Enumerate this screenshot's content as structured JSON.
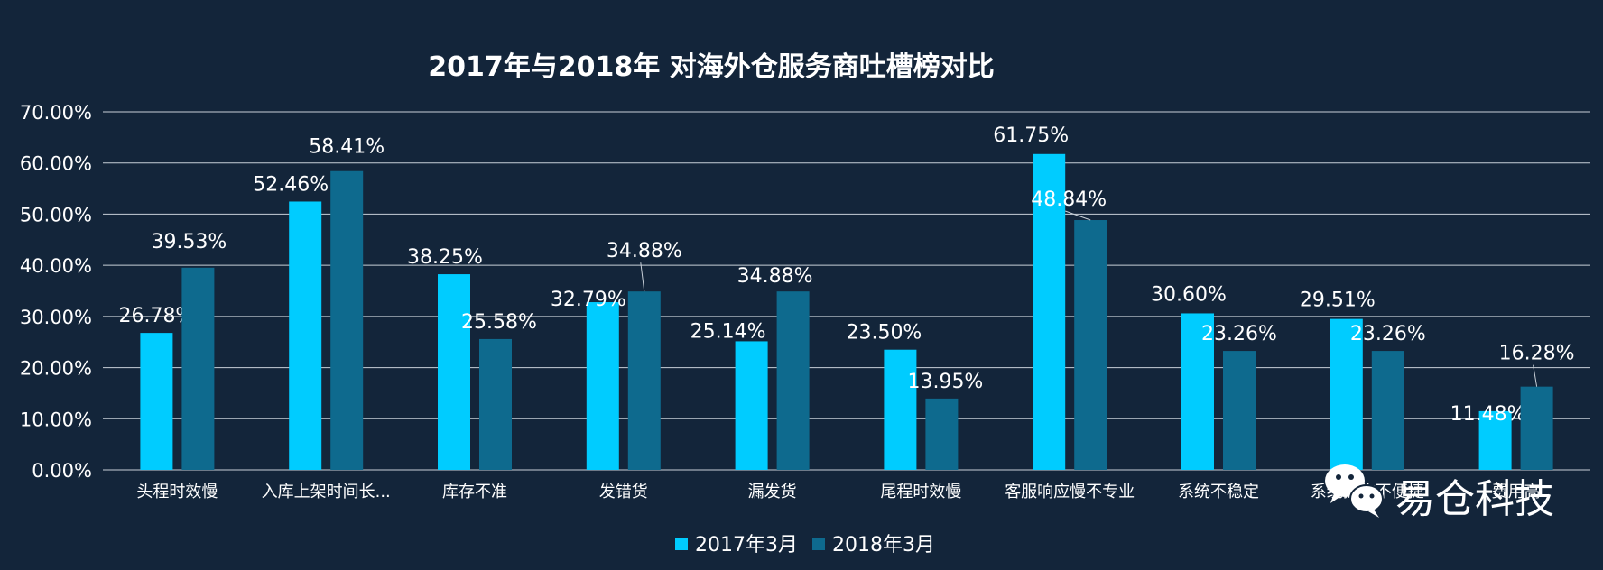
{
  "chart_data": {
    "type": "bar",
    "title": "2017年与2018年 对海外仓服务商吐槽榜对比",
    "categories": [
      "头程时效慢",
      "入库上架时间长...",
      "库存不准",
      "发错货",
      "漏发货",
      "尾程时效慢",
      "客服响应慢不专业",
      "系统不稳定",
      "系统操作不便捷",
      "费用高"
    ],
    "series": [
      {
        "name": "2017年3月",
        "color": "#00ccff",
        "values": [
          26.78,
          52.46,
          38.25,
          32.79,
          25.14,
          23.5,
          61.75,
          30.6,
          29.51,
          11.48
        ],
        "labels": [
          "26.78%",
          "52.46%",
          "38.25%",
          "32.79%",
          "25.14%",
          "23.50%",
          "61.75%",
          "30.60%",
          "29.51%",
          "11.48%"
        ]
      },
      {
        "name": "2018年3月",
        "color": "#0e6a8e",
        "values": [
          39.53,
          58.41,
          25.58,
          34.88,
          34.88,
          13.95,
          48.84,
          23.26,
          23.26,
          16.28
        ],
        "labels": [
          "39.53%",
          "58.41%",
          "25.58%",
          "34.88%",
          "34.88%",
          "13.95%",
          "48.84%",
          "23.26%",
          "23.26%",
          "16.28%"
        ]
      }
    ],
    "ylim": [
      0,
      70
    ],
    "y_ticks": [
      "0.00%",
      "10.00%",
      "20.00%",
      "30.00%",
      "40.00%",
      "50.00%",
      "60.00%",
      "70.00%"
    ],
    "grid": true,
    "legend_position": "bottom"
  },
  "watermark": {
    "text": "易仓科技",
    "icon": "wechat-icon"
  }
}
